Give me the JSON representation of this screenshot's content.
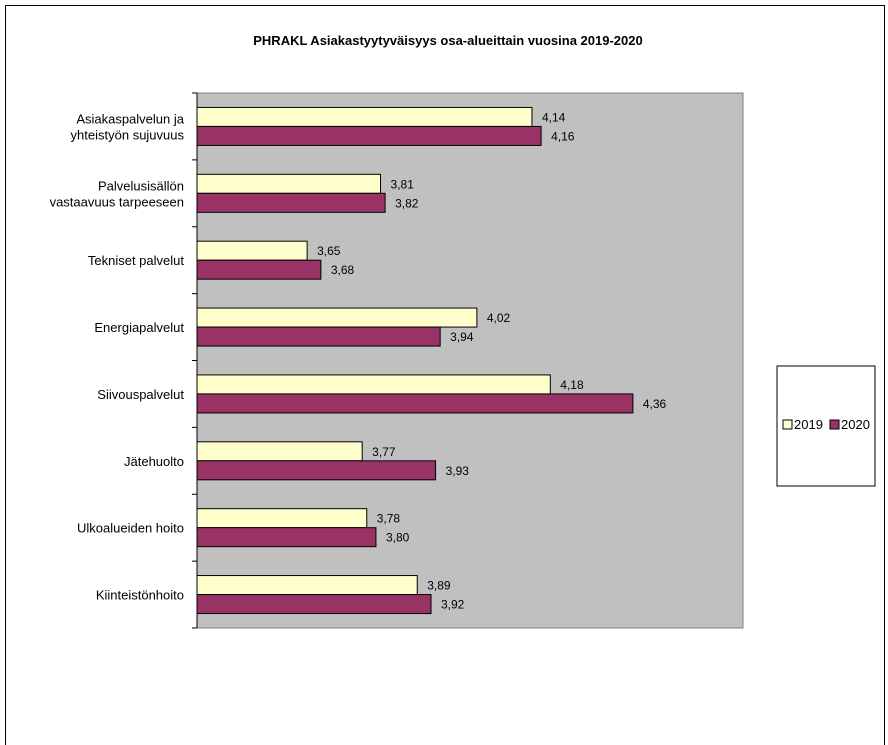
{
  "chart_data": {
    "type": "bar",
    "orientation": "horizontal",
    "title": "PHRAKL Asiakastyytyväisyys osa-alueittain vuosina 2019-2020",
    "categories": [
      [
        "Asiakaspalvelun ja",
        "yhteistyön sujuvuus"
      ],
      [
        "Palvelusisällön",
        "vastaavuus tarpeeseen"
      ],
      [
        "Tekniset palvelut"
      ],
      [
        "Energiapalvelut"
      ],
      [
        "Siivouspalvelut"
      ],
      [
        "Jätehuolto"
      ],
      [
        "Ulkoalueiden hoito"
      ],
      [
        "Kiinteistönhoito"
      ]
    ],
    "series": [
      {
        "name": "2019",
        "color": "#FFFFCC",
        "values": [
          4.14,
          3.81,
          3.65,
          4.02,
          4.18,
          3.77,
          3.78,
          3.89
        ],
        "labels": [
          "4,14",
          "3,81",
          "3,65",
          "4,02",
          "4,18",
          "3,77",
          "3,78",
          "3,89"
        ]
      },
      {
        "name": "2020",
        "color": "#993366",
        "values": [
          4.16,
          3.82,
          3.68,
          3.94,
          4.36,
          3.93,
          3.8,
          3.92
        ],
        "labels": [
          "4,16",
          "3,82",
          "3,68",
          "3,94",
          "4,36",
          "3,93",
          "3,80",
          "3,92"
        ]
      }
    ],
    "xlim": [
      3.41,
      4.6
    ],
    "plot_background": "#C0C0C0",
    "grid": false,
    "legend_position": "right"
  }
}
